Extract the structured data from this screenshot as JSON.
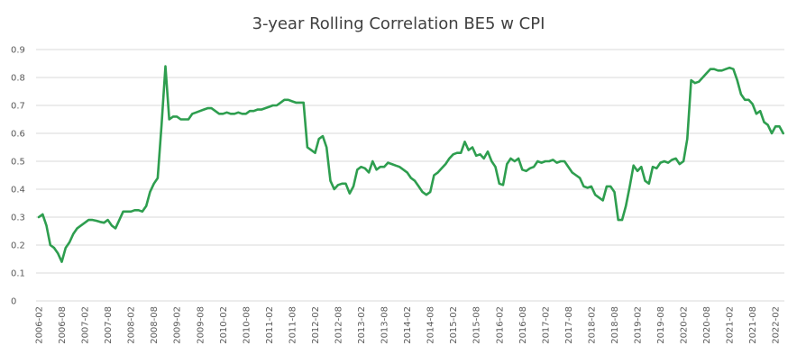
{
  "chart_data": {
    "type": "line",
    "title": "3-year Rolling Correlation BE5 w CPI",
    "xlabel": "",
    "ylabel": "",
    "ylim": [
      0,
      0.9
    ],
    "yticks": [
      "0",
      "0.1",
      "0.2",
      "0.3",
      "0.4",
      "0.5",
      "0.6",
      "0.7",
      "0.8",
      "0.9"
    ],
    "xticks": [
      "2006-02",
      "2006-08",
      "2007-02",
      "2007-08",
      "2008-02",
      "2008-08",
      "2009-02",
      "2009-08",
      "2010-02",
      "2010-08",
      "2011-02",
      "2011-08",
      "2012-02",
      "2012-08",
      "2013-02",
      "2013-08",
      "2014-02",
      "2014-08",
      "2015-02",
      "2015-08",
      "2016-02",
      "2016-08",
      "2017-02",
      "2017-08",
      "2018-02",
      "2018-08",
      "2019-02",
      "2019-08",
      "2020-02",
      "2020-08",
      "2021-02",
      "2021-08",
      "2022-02"
    ],
    "grid": "horizontal",
    "legend": "none",
    "series": [
      {
        "color": "#2e9e4f",
        "points": [
          [
            "2006-02",
            0.3
          ],
          [
            "2006-03",
            0.31
          ],
          [
            "2006-04",
            0.27
          ],
          [
            "2006-05",
            0.2
          ],
          [
            "2006-06",
            0.19
          ],
          [
            "2006-07",
            0.17
          ],
          [
            "2006-08",
            0.14
          ],
          [
            "2006-09",
            0.19
          ],
          [
            "2006-10",
            0.21
          ],
          [
            "2006-11",
            0.24
          ],
          [
            "2006-12",
            0.26
          ],
          [
            "2007-01",
            0.27
          ],
          [
            "2007-02",
            0.28
          ],
          [
            "2007-03",
            0.29
          ],
          [
            "2007-04",
            0.29
          ],
          [
            "2007-05",
            0.287
          ],
          [
            "2007-06",
            0.283
          ],
          [
            "2007-07",
            0.28
          ],
          [
            "2007-08",
            0.29
          ],
          [
            "2007-09",
            0.27
          ],
          [
            "2007-10",
            0.26
          ],
          [
            "2007-11",
            0.29
          ],
          [
            "2007-12",
            0.32
          ],
          [
            "2008-01",
            0.32
          ],
          [
            "2008-02",
            0.32
          ],
          [
            "2008-03",
            0.325
          ],
          [
            "2008-04",
            0.325
          ],
          [
            "2008-05",
            0.32
          ],
          [
            "2008-06",
            0.34
          ],
          [
            "2008-07",
            0.39
          ],
          [
            "2008-08",
            0.42
          ],
          [
            "2008-09",
            0.44
          ],
          [
            "2008-10",
            0.63
          ],
          [
            "2008-11",
            0.84
          ],
          [
            "2008-12",
            0.65
          ],
          [
            "2009-01",
            0.66
          ],
          [
            "2009-02",
            0.66
          ],
          [
            "2009-03",
            0.65
          ],
          [
            "2009-04",
            0.65
          ],
          [
            "2009-05",
            0.65
          ],
          [
            "2009-06",
            0.67
          ],
          [
            "2009-07",
            0.675
          ],
          [
            "2009-08",
            0.68
          ],
          [
            "2009-09",
            0.685
          ],
          [
            "2009-10",
            0.69
          ],
          [
            "2009-11",
            0.69
          ],
          [
            "2009-12",
            0.68
          ],
          [
            "2010-01",
            0.67
          ],
          [
            "2010-02",
            0.67
          ],
          [
            "2010-03",
            0.675
          ],
          [
            "2010-04",
            0.67
          ],
          [
            "2010-05",
            0.67
          ],
          [
            "2010-06",
            0.675
          ],
          [
            "2010-07",
            0.67
          ],
          [
            "2010-08",
            0.67
          ],
          [
            "2010-09",
            0.68
          ],
          [
            "2010-10",
            0.68
          ],
          [
            "2010-11",
            0.685
          ],
          [
            "2010-12",
            0.685
          ],
          [
            "2011-01",
            0.69
          ],
          [
            "2011-02",
            0.695
          ],
          [
            "2011-03",
            0.7
          ],
          [
            "2011-04",
            0.7
          ],
          [
            "2011-05",
            0.71
          ],
          [
            "2011-06",
            0.72
          ],
          [
            "2011-07",
            0.72
          ],
          [
            "2011-08",
            0.715
          ],
          [
            "2011-09",
            0.71
          ],
          [
            "2011-10",
            0.71
          ],
          [
            "2011-11",
            0.71
          ],
          [
            "2011-12",
            0.55
          ],
          [
            "2012-01",
            0.54
          ],
          [
            "2012-02",
            0.53
          ],
          [
            "2012-03",
            0.58
          ],
          [
            "2012-04",
            0.59
          ],
          [
            "2012-05",
            0.55
          ],
          [
            "2012-06",
            0.43
          ],
          [
            "2012-07",
            0.4
          ],
          [
            "2012-08",
            0.415
          ],
          [
            "2012-09",
            0.42
          ],
          [
            "2012-10",
            0.42
          ],
          [
            "2012-11",
            0.385
          ],
          [
            "2012-12",
            0.41
          ],
          [
            "2013-01",
            0.47
          ],
          [
            "2013-02",
            0.48
          ],
          [
            "2013-03",
            0.475
          ],
          [
            "2013-04",
            0.46
          ],
          [
            "2013-05",
            0.5
          ],
          [
            "2013-06",
            0.47
          ],
          [
            "2013-07",
            0.48
          ],
          [
            "2013-08",
            0.48
          ],
          [
            "2013-09",
            0.495
          ],
          [
            "2013-10",
            0.49
          ],
          [
            "2013-11",
            0.485
          ],
          [
            "2013-12",
            0.48
          ],
          [
            "2014-01",
            0.47
          ],
          [
            "2014-02",
            0.46
          ],
          [
            "2014-03",
            0.44
          ],
          [
            "2014-04",
            0.43
          ],
          [
            "2014-05",
            0.41
          ],
          [
            "2014-06",
            0.39
          ],
          [
            "2014-07",
            0.38
          ],
          [
            "2014-08",
            0.39
          ],
          [
            "2014-09",
            0.45
          ],
          [
            "2014-10",
            0.46
          ],
          [
            "2014-11",
            0.475
          ],
          [
            "2014-12",
            0.49
          ],
          [
            "2015-01",
            0.51
          ],
          [
            "2015-02",
            0.525
          ],
          [
            "2015-03",
            0.53
          ],
          [
            "2015-04",
            0.53
          ],
          [
            "2015-05",
            0.57
          ],
          [
            "2015-06",
            0.54
          ],
          [
            "2015-07",
            0.55
          ],
          [
            "2015-08",
            0.52
          ],
          [
            "2015-09",
            0.525
          ],
          [
            "2015-10",
            0.51
          ],
          [
            "2015-11",
            0.535
          ],
          [
            "2015-12",
            0.5
          ],
          [
            "2016-01",
            0.48
          ],
          [
            "2016-02",
            0.42
          ],
          [
            "2016-03",
            0.415
          ],
          [
            "2016-04",
            0.49
          ],
          [
            "2016-05",
            0.51
          ],
          [
            "2016-06",
            0.5
          ],
          [
            "2016-07",
            0.51
          ],
          [
            "2016-08",
            0.47
          ],
          [
            "2016-09",
            0.465
          ],
          [
            "2016-10",
            0.475
          ],
          [
            "2016-11",
            0.48
          ],
          [
            "2016-12",
            0.5
          ],
          [
            "2017-01",
            0.495
          ],
          [
            "2017-02",
            0.5
          ],
          [
            "2017-03",
            0.5
          ],
          [
            "2017-04",
            0.505
          ],
          [
            "2017-05",
            0.495
          ],
          [
            "2017-06",
            0.5
          ],
          [
            "2017-07",
            0.5
          ],
          [
            "2017-08",
            0.48
          ],
          [
            "2017-09",
            0.46
          ],
          [
            "2017-10",
            0.45
          ],
          [
            "2017-11",
            0.44
          ],
          [
            "2017-12",
            0.41
          ],
          [
            "2018-01",
            0.405
          ],
          [
            "2018-02",
            0.41
          ],
          [
            "2018-03",
            0.38
          ],
          [
            "2018-04",
            0.37
          ],
          [
            "2018-05",
            0.36
          ],
          [
            "2018-06",
            0.41
          ],
          [
            "2018-07",
            0.41
          ],
          [
            "2018-08",
            0.39
          ],
          [
            "2018-09",
            0.29
          ],
          [
            "2018-10",
            0.29
          ],
          [
            "2018-11",
            0.34
          ],
          [
            "2018-12",
            0.41
          ],
          [
            "2019-01",
            0.485
          ],
          [
            "2019-02",
            0.465
          ],
          [
            "2019-03",
            0.48
          ],
          [
            "2019-04",
            0.43
          ],
          [
            "2019-05",
            0.42
          ],
          [
            "2019-06",
            0.48
          ],
          [
            "2019-07",
            0.475
          ],
          [
            "2019-08",
            0.495
          ],
          [
            "2019-09",
            0.5
          ],
          [
            "2019-10",
            0.495
          ],
          [
            "2019-11",
            0.505
          ],
          [
            "2019-12",
            0.51
          ],
          [
            "2020-01",
            0.49
          ],
          [
            "2020-02",
            0.5
          ],
          [
            "2020-03",
            0.58
          ],
          [
            "2020-04",
            0.79
          ],
          [
            "2020-05",
            0.78
          ],
          [
            "2020-06",
            0.785
          ],
          [
            "2020-07",
            0.8
          ],
          [
            "2020-08",
            0.815
          ],
          [
            "2020-09",
            0.83
          ],
          [
            "2020-10",
            0.83
          ],
          [
            "2020-11",
            0.825
          ],
          [
            "2020-12",
            0.825
          ],
          [
            "2021-01",
            0.83
          ],
          [
            "2021-02",
            0.835
          ],
          [
            "2021-03",
            0.83
          ],
          [
            "2021-04",
            0.79
          ],
          [
            "2021-05",
            0.74
          ],
          [
            "2021-06",
            0.72
          ],
          [
            "2021-07",
            0.72
          ],
          [
            "2021-08",
            0.705
          ],
          [
            "2021-09",
            0.67
          ],
          [
            "2021-10",
            0.68
          ],
          [
            "2021-11",
            0.64
          ],
          [
            "2021-12",
            0.63
          ],
          [
            "2022-01",
            0.6
          ],
          [
            "2022-02",
            0.625
          ],
          [
            "2022-03",
            0.625
          ],
          [
            "2022-04",
            0.6
          ]
        ]
      }
    ]
  }
}
